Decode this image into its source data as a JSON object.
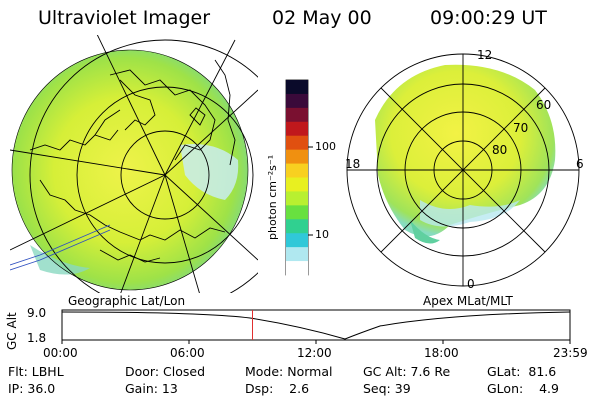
{
  "header": {
    "title": "Ultraviolet Imager",
    "date": "02 May 00",
    "time": "09:00:29 UT"
  },
  "colorbar": {
    "unit_label": "photon cm⁻²s⁻¹",
    "ticks": [
      "100",
      "10"
    ],
    "colors": [
      "#0a0a2a",
      "#3a0a3a",
      "#7a1030",
      "#c0181c",
      "#e05010",
      "#f09010",
      "#f8d020",
      "#e8f020",
      "#b8f030",
      "#68e040",
      "#30d090",
      "#30c8d8",
      "#b0e8f0",
      "#ffffff"
    ]
  },
  "left_map": {
    "label": "Geographic Lat/Lon"
  },
  "right_map": {
    "label": "Apex MLat/MLT",
    "mlt_labels": {
      "top": "12",
      "left": "18",
      "right": "6",
      "bottom": "0"
    },
    "mlat_labels": [
      "60",
      "70",
      "80"
    ]
  },
  "altitude_plot": {
    "axis_label": "GC Alt",
    "y_ticks": [
      "9.0",
      "1.8"
    ],
    "x_ticks": [
      "00:00",
      "06:00",
      "12:00",
      "18:00",
      "23:59"
    ],
    "current_time_fraction": 0.375,
    "marker_color": "#e03030"
  },
  "info": {
    "row1": {
      "flt": "Flt: LBHL",
      "door": "Door: Closed",
      "mode": "Mode: Normal",
      "gcalt": "GC Alt: 7.6 Re",
      "glat": "GLat:  81.6"
    },
    "row2": {
      "ip": "IP: 36.0",
      "gain": "Gain: 13",
      "dsp": "Dsp:    2.6",
      "seq": "Seq: 39",
      "glon": "GLon:    4.9"
    }
  }
}
